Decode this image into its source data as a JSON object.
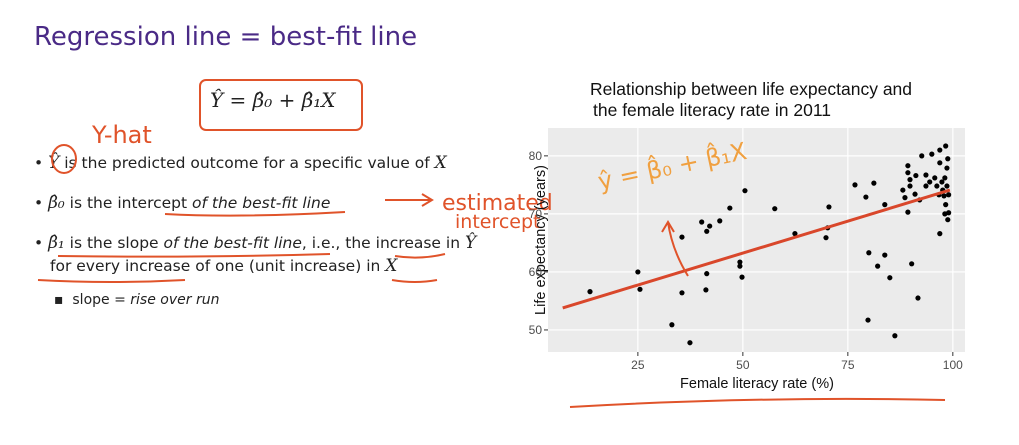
{
  "slide": {
    "title": "Regression line = best-fit line",
    "formula": "Ŷ = β̂₀ + β̂₁X",
    "bullets": [
      [
        "Ŷ",
        " is the predicted outcome for a specific value of ",
        "X"
      ],
      [
        "β̂₀",
        " is the ",
        "intercept",
        " of the best-fit line"
      ],
      [
        "β̂₁",
        " is the slope ",
        "of the best-fit line",
        ", i.e., the ",
        "increase in ",
        "Ŷ",
        "for every increase of one",
        " (unit increase) ",
        "in ",
        "X"
      ]
    ],
    "sub_bullet": [
      "slope = ",
      "rise over run"
    ],
    "annotations": {
      "y_hat": "Y-hat",
      "estimated": "estimated",
      "intercept": "intercept",
      "chart_formula": "ŷ = β̂₀ + β̂₁X"
    }
  },
  "chart_data": {
    "type": "scatter",
    "title": [
      "Relationship between life expectancy and",
      "the female literacy rate in 2011"
    ],
    "x_label": "Female literacy rate (%)",
    "y_label": "Life expectancy (years)",
    "xlim": [
      3.6,
      102.9
    ],
    "ylim": [
      46.2,
      84.8
    ],
    "xticks": [
      25,
      50,
      75,
      100
    ],
    "yticks": [
      50,
      60,
      70,
      80
    ],
    "grid": true,
    "points": {
      "color": "#000000",
      "x": [
        13.6,
        25,
        25.5,
        33.1,
        35.5,
        35.5,
        37.4,
        40.2,
        41.2,
        41.4,
        41.4,
        42.1,
        44.5,
        46.9,
        50.5,
        49.3,
        49.3,
        49.8,
        57.6,
        62.4,
        70.5,
        70.2,
        69.8,
        76.7,
        79.3,
        81.2,
        80,
        82.1,
        83.8,
        85,
        83.8,
        79.8,
        86.2,
        88.1,
        88.6,
        89.3,
        89.3,
        89.8,
        89.8,
        89.3,
        90.2,
        91,
        91.2,
        91.7,
        92.1,
        92.6,
        93.6,
        93.6,
        94.5,
        95,
        95.7,
        96.2,
        96.9,
        96.9,
        96.9,
        97.4,
        97.6,
        97.9,
        98.1,
        98.3,
        98.3,
        98.6,
        98.8,
        99,
        99,
        98.8,
        98.6,
        98.1,
        96.7
      ],
      "y": [
        56.6,
        60,
        57,
        50.9,
        56.4,
        66,
        47.8,
        68.6,
        56.9,
        59.7,
        67,
        67.9,
        68.8,
        71,
        74,
        61.7,
        61,
        59.1,
        70.9,
        66.6,
        71.2,
        67.6,
        65.9,
        75,
        72.9,
        75.3,
        63.3,
        61,
        62.9,
        59,
        71.6,
        51.7,
        49,
        74.1,
        72.8,
        78.3,
        77.1,
        75.9,
        74.8,
        70.3,
        61.4,
        73.4,
        76.6,
        55.5,
        72.4,
        80,
        76.7,
        74.8,
        75.5,
        80.3,
        76.2,
        74.8,
        81,
        78.8,
        66.6,
        75.5,
        74.1,
        73.1,
        76.2,
        81.7,
        71.6,
        77.9,
        69,
        70.2,
        73.3,
        79.5,
        74.8,
        70,
        73.3
      ]
    },
    "fit": {
      "color": "#d9472b",
      "x": [
        7.1,
        99.3
      ],
      "y": [
        53.8,
        74.1
      ]
    }
  }
}
